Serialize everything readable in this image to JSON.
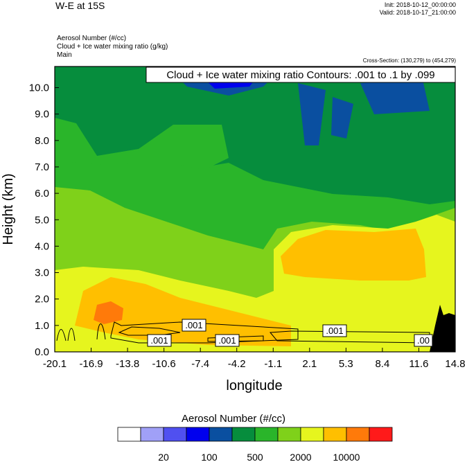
{
  "header": {
    "title": "W-E at 15S",
    "init": "Init: 2018-10-12_00:00:00",
    "valid": "Valid: 2018-10-17_21:00:00",
    "field1": "Aerosol Number   (#/cc)",
    "field2": "Cloud + Ice water mixing ratio   (g/kg)",
    "field3": "Main",
    "cross_section": "Cross-Section: (130,279) to (454,279)"
  },
  "chart_data": {
    "type": "heatmap",
    "title": "W-E at 15S",
    "xlabel": "longitude",
    "ylabel": "Height (km)",
    "x_ticks": [
      "-20.1",
      "-16.9",
      "-13.8",
      "-10.6",
      "-7.4",
      "-4.2",
      "-1.1",
      "2.1",
      "5.3",
      "8.4",
      "11.6",
      "14.8"
    ],
    "y_ticks": [
      "0.0",
      "1.0",
      "2.0",
      "3.0",
      "4.0",
      "5.0",
      "6.0",
      "7.0",
      "8.0",
      "9.0",
      "10.0"
    ],
    "xlim": [
      -20.1,
      14.8
    ],
    "ylim": [
      0,
      10.8
    ],
    "contour_overlay": {
      "label": "Cloud + Ice water mixing ratio Contours: .001 to .1 by .099",
      "level_labels": [
        ".001",
        ".001",
        ".001",
        ".001",
        ".00"
      ]
    },
    "colorbar": {
      "title": "Aerosol Number  (#/cc)",
      "tick_labels": [
        "20",
        "100",
        "500",
        "2000",
        "10000"
      ],
      "colors": [
        "#ffffff",
        "#a0a0f7",
        "#5050f0",
        "#0000ee",
        "#0a4fa0",
        "#068d3d",
        "#2ab52a",
        "#7fd11a",
        "#e6f51e",
        "#ffbf00",
        "#ff7a0a",
        "#ff1a1a"
      ]
    },
    "grid": false,
    "legend_placement": "bottom"
  }
}
